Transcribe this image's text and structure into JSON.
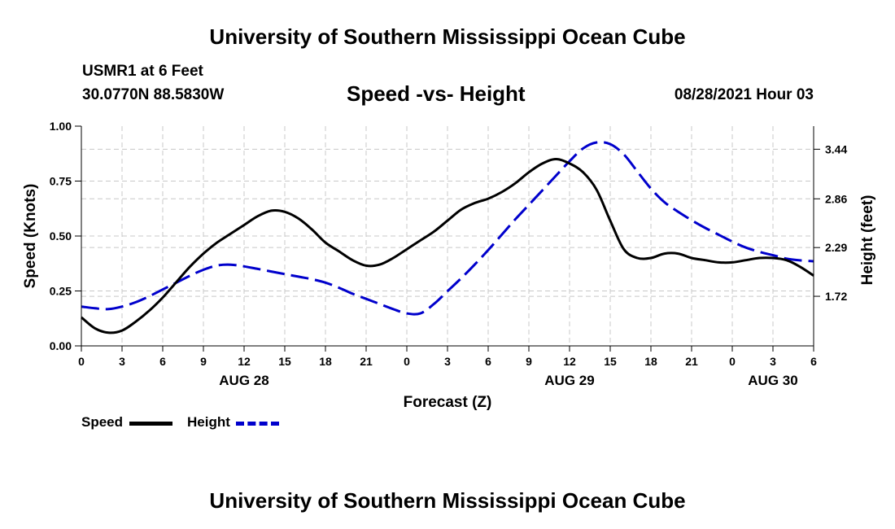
{
  "header": {
    "institution": "University of Southern Mississippi Ocean Cube",
    "station": "USMR1 at 6 Feet",
    "coordinates": "30.0770N  88.5830W",
    "chart_title": "Speed -vs- Height",
    "date_hour": "08/28/2021 Hour 03"
  },
  "footer": {
    "institution": "University of Southern Mississippi Ocean Cube"
  },
  "legend": {
    "speed_label": "Speed",
    "height_label": "Height"
  },
  "colors": {
    "speed": "#000000",
    "height": "#0000cc",
    "grid": "#c8c8c8"
  },
  "chart_data": {
    "type": "line",
    "title": "Speed -vs- Height",
    "xlabel": "Forecast (Z)",
    "ylabel": "Speed (Knots)",
    "y2label": "Height (feet)",
    "x_range_hours": [
      0,
      54
    ],
    "x_tick_hours": [
      0,
      3,
      6,
      9,
      12,
      15,
      18,
      21,
      24,
      27,
      30,
      33,
      36,
      39,
      42,
      45,
      48,
      51,
      54
    ],
    "x_tick_labels": [
      "0",
      "3",
      "6",
      "9",
      "12",
      "15",
      "18",
      "21",
      "0",
      "3",
      "6",
      "9",
      "12",
      "15",
      "18",
      "21",
      "0",
      "3",
      "6"
    ],
    "date_labels": [
      {
        "hour": 12,
        "label": "AUG 28"
      },
      {
        "hour": 36,
        "label": "AUG 29"
      },
      {
        "hour": 51,
        "label": "AUG 30"
      }
    ],
    "ylim": [
      0,
      1.0
    ],
    "y_ticks": [
      0.0,
      0.25,
      0.5,
      0.75,
      1.0
    ],
    "y_tick_labels": [
      "0.00",
      "0.25",
      "0.50",
      "0.75",
      "1.00"
    ],
    "y2lim": [
      1.14,
      3.71
    ],
    "y2_ticks": [
      1.72,
      2.29,
      2.86,
      3.44
    ],
    "y2_tick_labels": [
      "1.72",
      "2.29",
      "2.86",
      "3.44"
    ],
    "grid": true,
    "series": [
      {
        "name": "Speed",
        "axis": "left",
        "style": "solid",
        "x": [
          0,
          1,
          2,
          3,
          4,
          5,
          6,
          7,
          8,
          9,
          10,
          11,
          12,
          13,
          14,
          15,
          16,
          17,
          18,
          19,
          20,
          21,
          22,
          23,
          24,
          25,
          26,
          27,
          28,
          29,
          30,
          31,
          32,
          33,
          34,
          35,
          36,
          37,
          38,
          39,
          40,
          41,
          42,
          43,
          44,
          45,
          46,
          47,
          48,
          49,
          50,
          51,
          52,
          53,
          54
        ],
        "values": [
          0.13,
          0.08,
          0.06,
          0.07,
          0.11,
          0.16,
          0.22,
          0.29,
          0.36,
          0.42,
          0.47,
          0.51,
          0.55,
          0.59,
          0.615,
          0.61,
          0.58,
          0.53,
          0.47,
          0.43,
          0.39,
          0.365,
          0.37,
          0.4,
          0.44,
          0.48,
          0.52,
          0.57,
          0.62,
          0.65,
          0.67,
          0.7,
          0.74,
          0.79,
          0.83,
          0.85,
          0.83,
          0.79,
          0.71,
          0.57,
          0.44,
          0.4,
          0.4,
          0.42,
          0.42,
          0.4,
          0.39,
          0.38,
          0.38,
          0.39,
          0.4,
          0.4,
          0.39,
          0.36,
          0.32
        ]
      },
      {
        "name": "Height",
        "axis": "right",
        "style": "dashed",
        "x": [
          0,
          1,
          2,
          3,
          4,
          5,
          6,
          7,
          8,
          9,
          10,
          11,
          12,
          13,
          14,
          15,
          16,
          17,
          18,
          19,
          20,
          21,
          22,
          23,
          24,
          25,
          26,
          27,
          28,
          29,
          30,
          31,
          32,
          33,
          34,
          35,
          36,
          37,
          38,
          39,
          40,
          41,
          42,
          43,
          44,
          45,
          46,
          47,
          48,
          49,
          50,
          51,
          52,
          53,
          54
        ],
        "values": [
          1.6,
          1.58,
          1.57,
          1.6,
          1.65,
          1.72,
          1.8,
          1.88,
          1.96,
          2.03,
          2.08,
          2.09,
          2.07,
          2.04,
          2.01,
          1.98,
          1.95,
          1.92,
          1.88,
          1.82,
          1.75,
          1.69,
          1.63,
          1.57,
          1.52,
          1.52,
          1.63,
          1.78,
          1.93,
          2.09,
          2.26,
          2.44,
          2.62,
          2.79,
          2.96,
          3.13,
          3.3,
          3.45,
          3.52,
          3.5,
          3.38,
          3.18,
          2.98,
          2.82,
          2.71,
          2.61,
          2.52,
          2.44,
          2.36,
          2.29,
          2.24,
          2.2,
          2.16,
          2.14,
          2.13
        ]
      }
    ]
  }
}
